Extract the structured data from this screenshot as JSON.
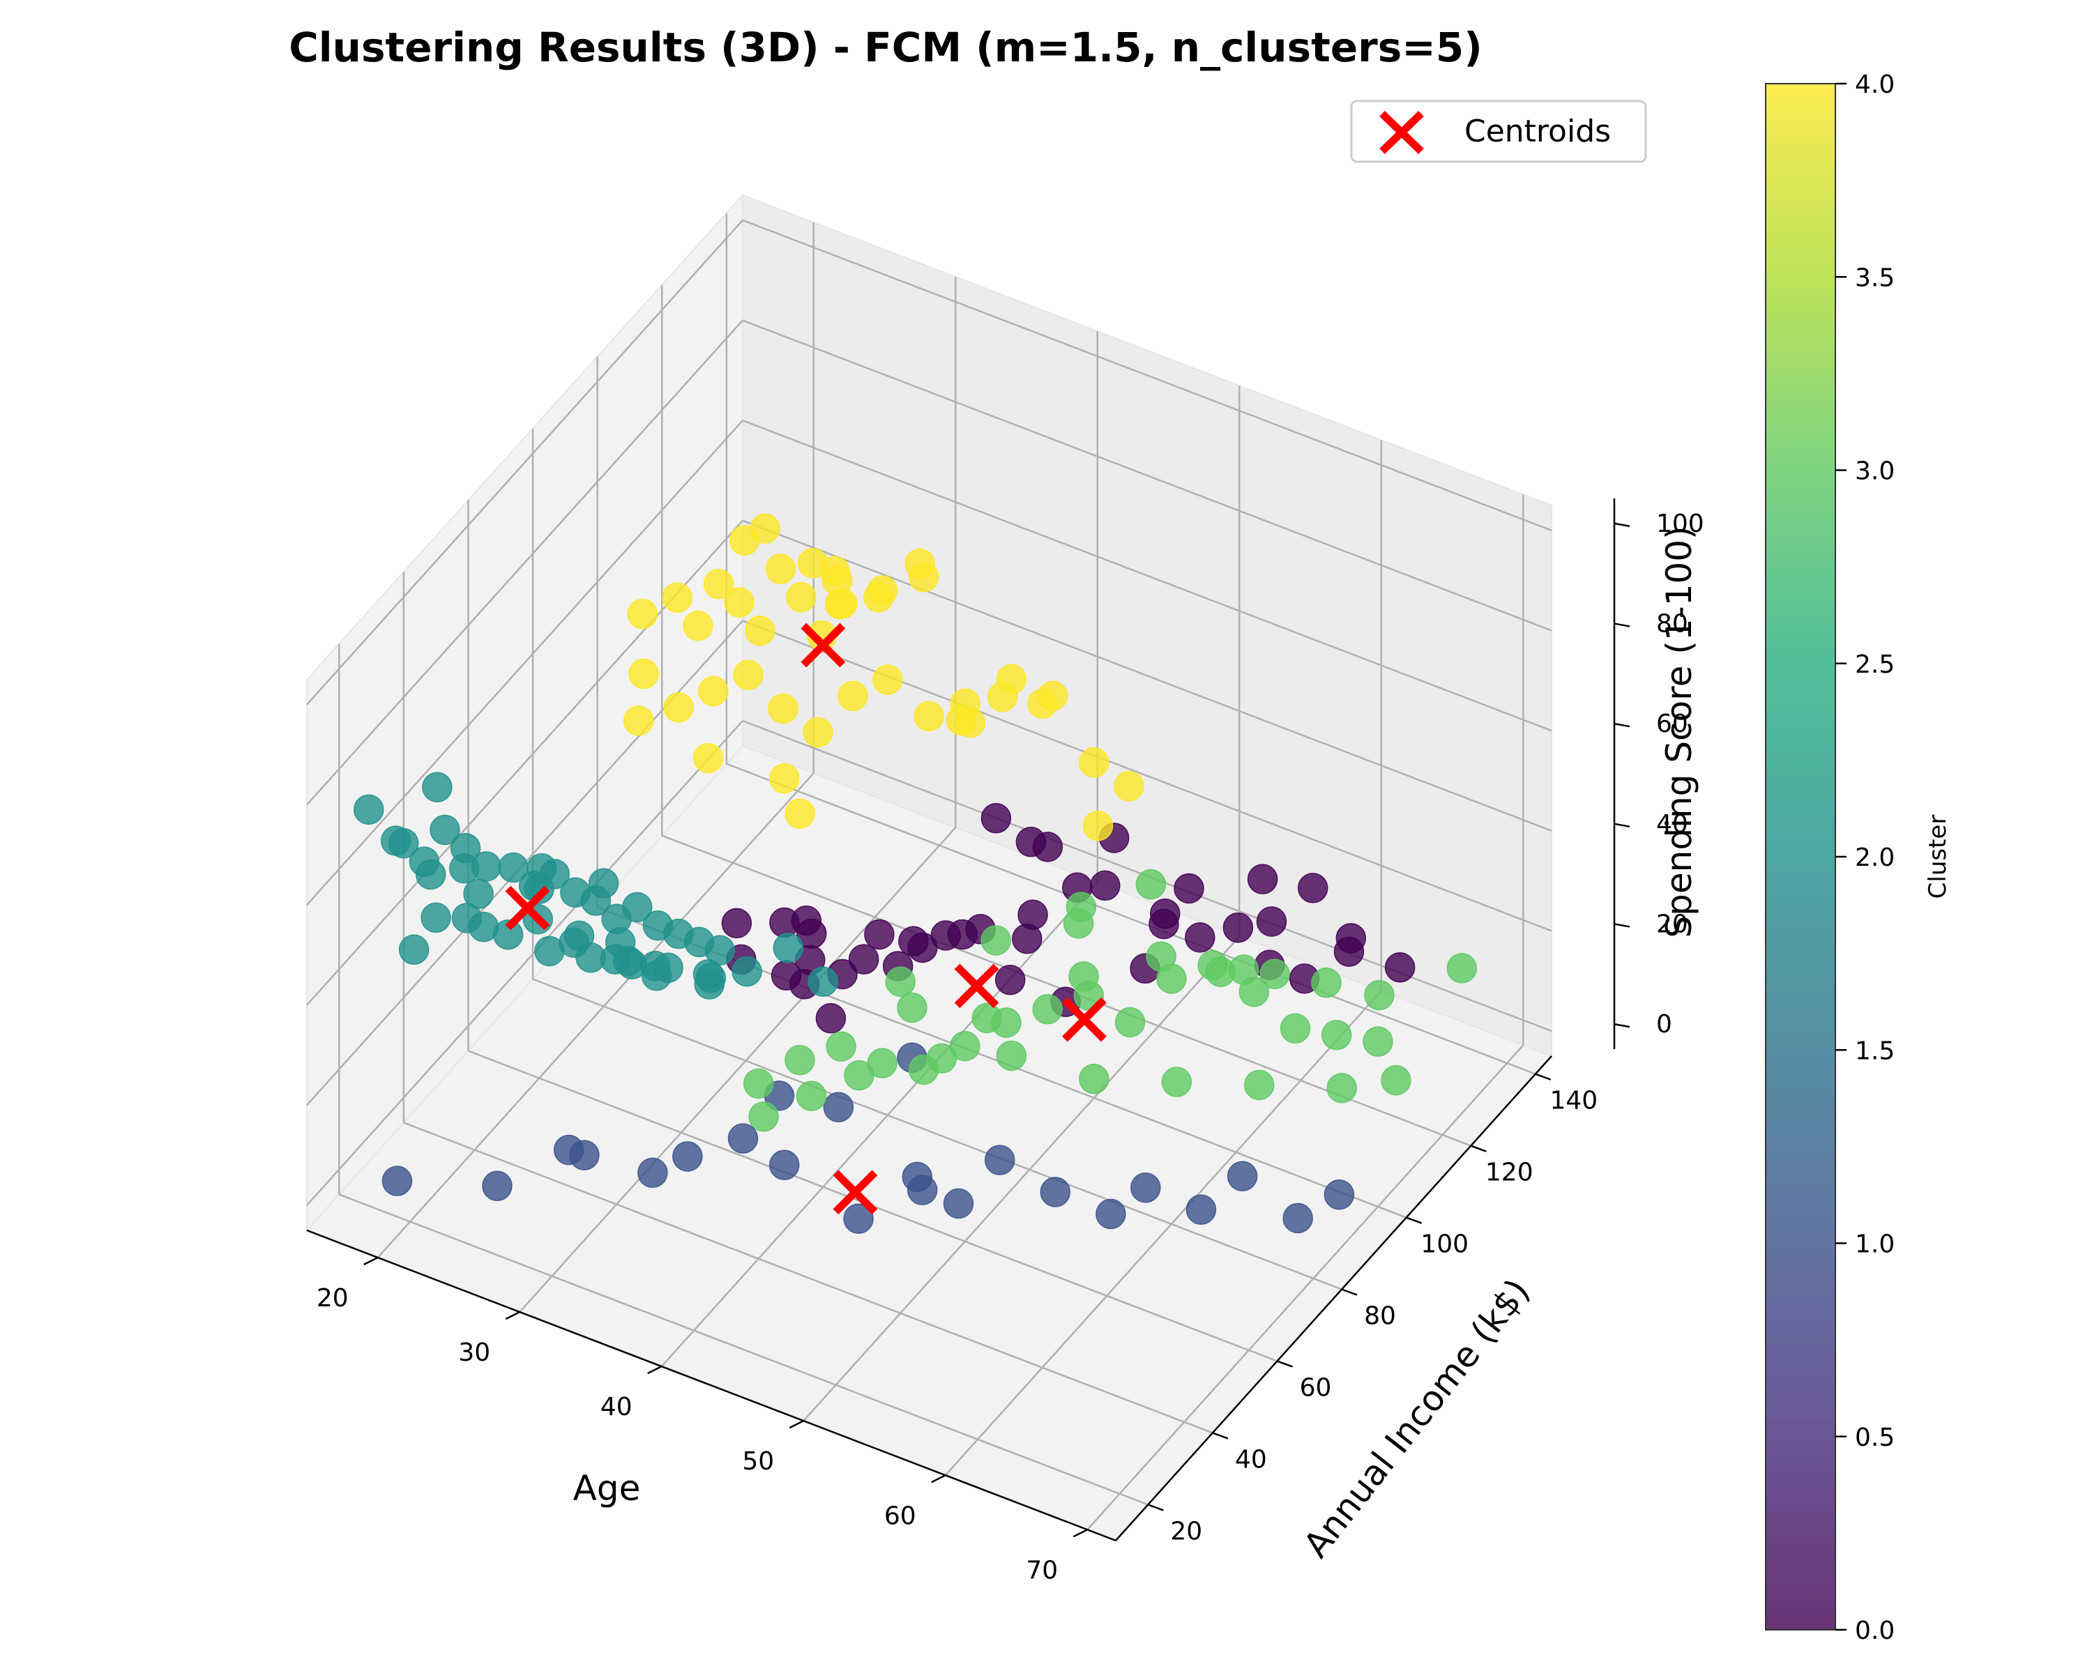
{
  "chart_data": {
    "type": "scatter",
    "projection": "3d",
    "title": "Clustering Results (3D) - FCM (m=1.5, n_clusters=5)",
    "xlabel": "Age",
    "ylabel": "Annual Income (k$)",
    "zlabel": "Spending Score (1-100)",
    "xlim": [
      15,
      72
    ],
    "ylim": [
      10,
      145
    ],
    "zlim": [
      -5,
      105
    ],
    "x_ticks": [
      20,
      30,
      40,
      50,
      60,
      70
    ],
    "y_ticks": [
      20,
      40,
      60,
      80,
      100,
      120,
      140
    ],
    "z_ticks": [
      0,
      20,
      40,
      60,
      80,
      100
    ],
    "grid": true,
    "legend": {
      "placement": "top-right",
      "entries": [
        "Centroids"
      ]
    },
    "colorbar": {
      "label": "Cluster",
      "min": 0.0,
      "max": 4.0,
      "colormap": "viridis",
      "ticks": [
        "0.0",
        "0.5",
        "1.0",
        "1.5",
        "2.0",
        "2.5",
        "3.0",
        "3.5",
        "4.0"
      ]
    },
    "cluster_colors": [
      "#440154",
      "#3b528b",
      "#21918c",
      "#5ec962",
      "#fde725"
    ],
    "centroid_color": "#ff0000",
    "series": [
      {
        "cluster": 0,
        "points": [
          [
            33,
            85,
            10
          ],
          [
            35,
            88,
            12
          ],
          [
            38,
            92,
            14
          ],
          [
            36,
            95,
            16
          ],
          [
            40,
            98,
            18
          ],
          [
            42,
            100,
            20
          ],
          [
            45,
            103,
            24
          ],
          [
            47,
            108,
            28
          ],
          [
            44,
            112,
            30
          ],
          [
            48,
            115,
            34
          ],
          [
            39,
            118,
            26
          ],
          [
            41,
            120,
            22
          ],
          [
            46,
            121,
            18
          ],
          [
            50,
            122,
            16
          ],
          [
            52,
            124,
            12
          ],
          [
            49,
            126,
            10
          ],
          [
            54,
            127,
            14
          ],
          [
            56,
            128,
            8
          ],
          [
            58,
            130,
            6
          ],
          [
            55,
            133,
            12
          ],
          [
            60,
            135,
            10
          ],
          [
            57,
            137,
            18
          ],
          [
            53,
            139,
            14
          ],
          [
            51,
            125,
            20
          ],
          [
            43,
            110,
            12
          ],
          [
            37,
            104,
            8
          ],
          [
            34,
            99,
            6
          ],
          [
            31,
            96,
            10
          ],
          [
            30,
            92,
            14
          ],
          [
            32,
            90,
            18
          ],
          [
            28,
            86,
            16
          ],
          [
            29,
            83,
            12
          ],
          [
            36,
            80,
            10
          ],
          [
            35,
            78,
            22
          ],
          [
            40,
            88,
            24
          ],
          [
            59,
            140,
            8
          ],
          [
            62,
            142,
            4
          ],
          [
            45,
            96,
            16
          ],
          [
            48,
            100,
            12
          ],
          [
            52,
            107,
            18
          ],
          [
            34,
            75,
            20
          ],
          [
            38,
            112,
            6
          ]
        ]
      },
      {
        "cluster": 1,
        "points": [
          [
            20,
            16,
            6
          ],
          [
            25,
            25,
            4
          ],
          [
            28,
            34,
            8
          ],
          [
            30,
            30,
            12
          ],
          [
            33,
            38,
            6
          ],
          [
            35,
            40,
            10
          ],
          [
            38,
            44,
            14
          ],
          [
            40,
            48,
            8
          ],
          [
            45,
            49,
            2
          ],
          [
            48,
            54,
            10
          ],
          [
            50,
            58,
            4
          ],
          [
            52,
            62,
            12
          ],
          [
            55,
            66,
            6
          ],
          [
            58,
            70,
            2
          ],
          [
            60,
            72,
            8
          ],
          [
            63,
            76,
            4
          ],
          [
            65,
            80,
            10
          ],
          [
            68,
            84,
            2
          ],
          [
            70,
            88,
            6
          ],
          [
            42,
            56,
            16
          ],
          [
            44,
            70,
            18
          ],
          [
            47,
            60,
            2
          ],
          [
            36,
            64,
            6
          ]
        ]
      },
      {
        "cluster": 2,
        "points": [
          [
            18,
            16,
            78
          ],
          [
            20,
            18,
            72
          ],
          [
            21,
            20,
            68
          ],
          [
            22,
            22,
            74
          ],
          [
            23,
            24,
            70
          ],
          [
            24,
            26,
            66
          ],
          [
            22,
            28,
            62
          ],
          [
            25,
            30,
            64
          ],
          [
            26,
            32,
            60
          ],
          [
            27,
            34,
            62
          ],
          [
            28,
            36,
            58
          ],
          [
            29,
            38,
            56
          ],
          [
            30,
            40,
            52
          ],
          [
            31,
            42,
            54
          ],
          [
            32,
            44,
            50
          ],
          [
            33,
            46,
            48
          ],
          [
            34,
            48,
            46
          ],
          [
            35,
            50,
            44
          ],
          [
            24,
            20,
            60
          ],
          [
            26,
            24,
            56
          ],
          [
            28,
            28,
            52
          ],
          [
            30,
            32,
            50
          ],
          [
            32,
            36,
            48
          ],
          [
            23,
            28,
            58
          ],
          [
            21,
            22,
            64
          ],
          [
            19,
            20,
            70
          ],
          [
            27,
            40,
            44
          ],
          [
            29,
            44,
            40
          ],
          [
            31,
            48,
            36
          ],
          [
            36,
            54,
            38
          ],
          [
            38,
            58,
            42
          ],
          [
            40,
            60,
            36
          ],
          [
            25,
            38,
            54
          ],
          [
            34,
            26,
            58
          ],
          [
            35,
            34,
            52
          ],
          [
            37,
            38,
            48
          ],
          [
            20,
            28,
            50
          ],
          [
            22,
            34,
            46
          ],
          [
            24,
            42,
            44
          ],
          [
            26,
            46,
            40
          ],
          [
            28,
            50,
            38
          ],
          [
            30,
            52,
            34
          ],
          [
            33,
            56,
            32
          ],
          [
            18,
            30,
            40
          ],
          [
            21,
            24,
            80
          ],
          [
            27,
            30,
            66
          ],
          [
            30,
            36,
            62
          ],
          [
            36,
            42,
            46
          ]
        ]
      },
      {
        "cluster": 3,
        "points": [
          [
            40,
            40,
            30
          ],
          [
            42,
            44,
            34
          ],
          [
            44,
            48,
            36
          ],
          [
            46,
            52,
            32
          ],
          [
            48,
            56,
            30
          ],
          [
            50,
            60,
            34
          ],
          [
            52,
            64,
            38
          ],
          [
            54,
            68,
            40
          ],
          [
            56,
            72,
            42
          ],
          [
            58,
            76,
            36
          ],
          [
            60,
            80,
            44
          ],
          [
            62,
            84,
            46
          ],
          [
            64,
            88,
            40
          ],
          [
            66,
            92,
            32
          ],
          [
            68,
            96,
            30
          ],
          [
            70,
            100,
            28
          ],
          [
            43,
            58,
            22
          ],
          [
            47,
            66,
            24
          ],
          [
            51,
            70,
            26
          ],
          [
            55,
            78,
            20
          ],
          [
            59,
            86,
            18
          ],
          [
            63,
            94,
            16
          ],
          [
            67,
            102,
            14
          ],
          [
            69,
            110,
            12
          ],
          [
            45,
            62,
            40
          ],
          [
            49,
            74,
            44
          ],
          [
            53,
            82,
            46
          ],
          [
            57,
            90,
            38
          ],
          [
            61,
            98,
            34
          ],
          [
            65,
            106,
            30
          ],
          [
            41,
            52,
            20
          ],
          [
            39,
            46,
            18
          ],
          [
            47,
            80,
            22
          ],
          [
            58,
            104,
            26
          ],
          [
            66,
            118,
            20
          ],
          [
            44,
            70,
            28
          ],
          [
            52,
            88,
            30
          ],
          [
            60,
            112,
            22
          ],
          [
            70,
            126,
            24
          ],
          [
            50,
            96,
            36
          ],
          [
            54,
            100,
            42
          ]
        ]
      },
      {
        "cluster": 4,
        "points": [
          [
            25,
            70,
            86
          ],
          [
            27,
            72,
            90
          ],
          [
            28,
            74,
            84
          ],
          [
            29,
            76,
            92
          ],
          [
            30,
            78,
            88
          ],
          [
            31,
            80,
            82
          ],
          [
            32,
            82,
            94
          ],
          [
            33,
            84,
            88
          ],
          [
            34,
            86,
            80
          ],
          [
            35,
            88,
            86
          ],
          [
            26,
            66,
            78
          ],
          [
            28,
            68,
            72
          ],
          [
            30,
            70,
            76
          ],
          [
            32,
            72,
            80
          ],
          [
            34,
            74,
            74
          ],
          [
            36,
            76,
            70
          ],
          [
            38,
            78,
            78
          ],
          [
            40,
            80,
            82
          ],
          [
            42,
            84,
            74
          ],
          [
            44,
            88,
            72
          ],
          [
            36,
            82,
            96
          ],
          [
            38,
            86,
            92
          ],
          [
            40,
            90,
            98
          ],
          [
            34,
            90,
            90
          ],
          [
            30,
            86,
            97
          ],
          [
            32,
            92,
            88
          ],
          [
            46,
            92,
            80
          ],
          [
            48,
            96,
            76
          ],
          [
            44,
            98,
            70
          ],
          [
            42,
            94,
            66
          ],
          [
            50,
            100,
            62
          ],
          [
            52,
            102,
            58
          ],
          [
            40,
            104,
            60
          ],
          [
            45,
            106,
            64
          ],
          [
            48,
            110,
            40
          ],
          [
            36,
            96,
            84
          ],
          [
            38,
            100,
            86
          ],
          [
            29,
            84,
            95
          ],
          [
            33,
            96,
            78
          ],
          [
            31,
            64,
            68
          ],
          [
            27,
            60,
            74
          ],
          [
            35,
            70,
            64
          ],
          [
            37,
            66,
            62
          ]
        ]
      }
    ],
    "centroids": [
      {
        "cluster": 0,
        "point": [
          44,
          90,
          18
        ]
      },
      {
        "cluster": 1,
        "point": [
          45,
          48,
          8
        ]
      },
      {
        "cluster": 2,
        "point": [
          26,
          30,
          57
        ]
      },
      {
        "cluster": 3,
        "point": [
          55,
          75,
          34
        ]
      },
      {
        "cluster": 4,
        "point": [
          35,
          82,
          82
        ]
      }
    ]
  }
}
